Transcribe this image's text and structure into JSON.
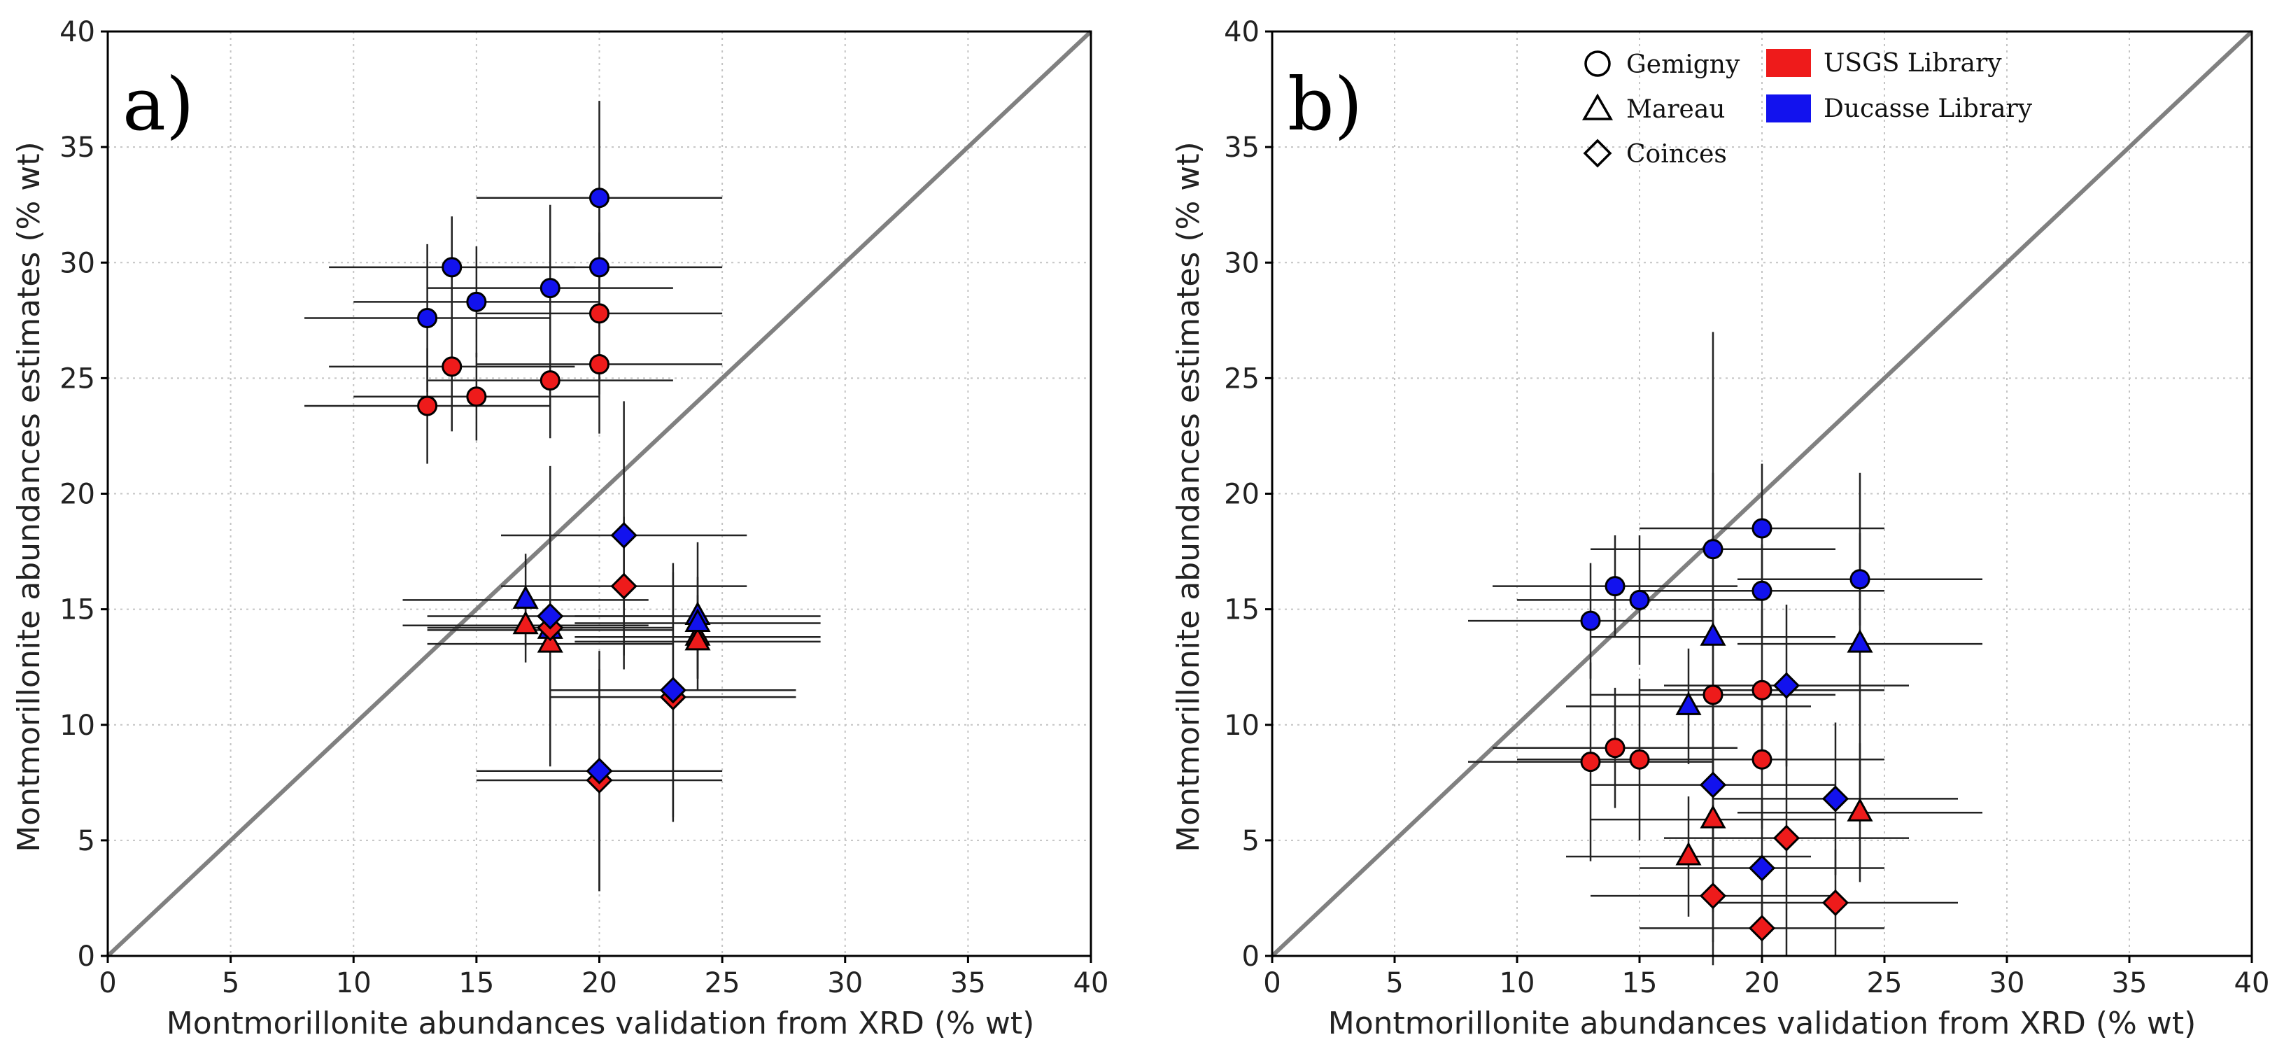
{
  "colors": {
    "usgs": "#ee1b1b",
    "ducasse": "#1212ee",
    "diagonal": "#808080"
  },
  "legend": {
    "shapes": [
      {
        "shape": "circle",
        "label": "Gemigny"
      },
      {
        "shape": "triangle",
        "label": "Mareau"
      },
      {
        "shape": "diamond",
        "label": "Coinces"
      }
    ],
    "libraries": [
      {
        "color_key": "usgs",
        "label": "USGS Library"
      },
      {
        "color_key": "ducasse",
        "label": "Ducasse Library"
      }
    ]
  },
  "chart_data": [
    {
      "panel": "a)",
      "type": "scatter",
      "xlabel": "Montmorillonite abundances validation from XRD (% wt)",
      "ylabel": "Montmorillonite abundances estimates (% wt)",
      "xlim": [
        0,
        40
      ],
      "ylim": [
        0,
        40
      ],
      "xticks": [
        0,
        5,
        10,
        15,
        20,
        25,
        30,
        35,
        40
      ],
      "yticks": [
        0,
        5,
        10,
        15,
        20,
        25,
        30,
        35,
        40
      ],
      "grid": true,
      "identity_line": true,
      "series": [
        {
          "name": "Gemigny - Ducasse Library",
          "shape": "circle",
          "color_key": "ducasse",
          "points": [
            {
              "x": 13,
              "y": 27.6,
              "xerr": 5,
              "yerr": 3.2
            },
            {
              "x": 14,
              "y": 29.8,
              "xerr": 5,
              "yerr": 2.2
            },
            {
              "x": 15,
              "y": 28.3,
              "xerr": 5,
              "yerr": 2.4
            },
            {
              "x": 18,
              "y": 28.9,
              "xerr": 5,
              "yerr": 3.6
            },
            {
              "x": 20,
              "y": 29.8,
              "xerr": 5,
              "yerr": 2.6
            },
            {
              "x": 20,
              "y": 32.8,
              "xerr": 5,
              "yerr": 4.2
            }
          ]
        },
        {
          "name": "Gemigny - USGS Library",
          "shape": "circle",
          "color_key": "usgs",
          "points": [
            {
              "x": 13,
              "y": 23.8,
              "xerr": 5,
              "yerr": 2.5
            },
            {
              "x": 14,
              "y": 25.5,
              "xerr": 5,
              "yerr": 2.8
            },
            {
              "x": 15,
              "y": 24.2,
              "xerr": 5,
              "yerr": 1.9
            },
            {
              "x": 18,
              "y": 24.9,
              "xerr": 5,
              "yerr": 2.5
            },
            {
              "x": 20,
              "y": 25.6,
              "xerr": 5,
              "yerr": 3.0
            },
            {
              "x": 20,
              "y": 27.8,
              "xerr": 5,
              "yerr": 3.5
            }
          ]
        },
        {
          "name": "Mareau - USGS Library",
          "shape": "triangle",
          "color_key": "usgs",
          "points": [
            {
              "x": 17,
              "y": 14.3,
              "xerr": 5,
              "yerr": 1.6
            },
            {
              "x": 18,
              "y": 13.5,
              "xerr": 5,
              "yerr": 2.4
            },
            {
              "x": 24,
              "y": 13.8,
              "xerr": 5,
              "yerr": 1.8
            },
            {
              "x": 24,
              "y": 13.6,
              "xerr": 5,
              "yerr": 1.6
            }
          ]
        },
        {
          "name": "Mareau - Ducasse Library",
          "shape": "triangle",
          "color_key": "ducasse",
          "points": [
            {
              "x": 17,
              "y": 15.4,
              "xerr": 5,
              "yerr": 2.0
            },
            {
              "x": 18,
              "y": 14.1,
              "xerr": 5,
              "yerr": 2.7
            },
            {
              "x": 24,
              "y": 14.7,
              "xerr": 5,
              "yerr": 3.2
            },
            {
              "x": 24,
              "y": 14.4,
              "xerr": 5,
              "yerr": 2.0
            }
          ]
        },
        {
          "name": "Coinces - USGS Library",
          "shape": "diamond",
          "color_key": "usgs",
          "points": [
            {
              "x": 18,
              "y": 14.2,
              "xerr": 5,
              "yerr": 2.0
            },
            {
              "x": 20,
              "y": 7.6,
              "xerr": 5,
              "yerr": 4.8
            },
            {
              "x": 21,
              "y": 16.0,
              "xerr": 5,
              "yerr": 3.0
            },
            {
              "x": 23,
              "y": 11.2,
              "xerr": 5,
              "yerr": 5.4
            }
          ]
        },
        {
          "name": "Coinces - Ducasse Library",
          "shape": "diamond",
          "color_key": "ducasse",
          "points": [
            {
              "x": 18,
              "y": 14.7,
              "xerr": 5,
              "yerr": 6.5
            },
            {
              "x": 20,
              "y": 8.0,
              "xerr": 5,
              "yerr": 5.2
            },
            {
              "x": 21,
              "y": 18.2,
              "xerr": 5,
              "yerr": 5.8
            },
            {
              "x": 23,
              "y": 11.5,
              "xerr": 5,
              "yerr": 5.5
            }
          ]
        }
      ]
    },
    {
      "panel": "b)",
      "type": "scatter",
      "xlabel": "Montmorillonite abundances validation from XRD (% wt)",
      "ylabel": "Montmorillonite abundances estimates (% wt)",
      "xlim": [
        0,
        40
      ],
      "ylim": [
        0,
        40
      ],
      "xticks": [
        0,
        5,
        10,
        15,
        20,
        25,
        30,
        35,
        40
      ],
      "yticks": [
        0,
        5,
        10,
        15,
        20,
        25,
        30,
        35,
        40
      ],
      "grid": true,
      "identity_line": true,
      "series": [
        {
          "name": "Gemigny - Ducasse Library",
          "shape": "circle",
          "color_key": "ducasse",
          "points": [
            {
              "x": 13,
              "y": 14.5,
              "xerr": 5,
              "yerr": 2.5
            },
            {
              "x": 14,
              "y": 16.0,
              "xerr": 5,
              "yerr": 2.2
            },
            {
              "x": 15,
              "y": 15.4,
              "xerr": 5,
              "yerr": 2.8
            },
            {
              "x": 18,
              "y": 17.6,
              "xerr": 5,
              "yerr": 3.3
            },
            {
              "x": 20,
              "y": 18.5,
              "xerr": 5,
              "yerr": 2.8
            },
            {
              "x": 20,
              "y": 15.8,
              "xerr": 5,
              "yerr": 2.0
            },
            {
              "x": 24,
              "y": 16.3,
              "xerr": 5,
              "yerr": 2.0
            }
          ]
        },
        {
          "name": "Gemigny - USGS Library",
          "shape": "circle",
          "color_key": "usgs",
          "points": [
            {
              "x": 13,
              "y": 8.4,
              "xerr": 5,
              "yerr": 4.3
            },
            {
              "x": 14,
              "y": 9.0,
              "xerr": 5,
              "yerr": 2.6
            },
            {
              "x": 15,
              "y": 8.5,
              "xerr": 5,
              "yerr": 3.5
            },
            {
              "x": 18,
              "y": 11.3,
              "xerr": 5,
              "yerr": 4.0
            },
            {
              "x": 20,
              "y": 11.5,
              "xerr": 5,
              "yerr": 3.5
            },
            {
              "x": 20,
              "y": 8.5,
              "xerr": 5,
              "yerr": 3.0
            }
          ]
        },
        {
          "name": "Mareau - Ducasse Library",
          "shape": "triangle",
          "color_key": "ducasse",
          "points": [
            {
              "x": 17,
              "y": 10.8,
              "xerr": 5,
              "yerr": 2.5
            },
            {
              "x": 18,
              "y": 13.8,
              "xerr": 5,
              "yerr": 13.2
            },
            {
              "x": 24,
              "y": 13.5,
              "xerr": 5,
              "yerr": 7.4
            }
          ]
        },
        {
          "name": "Mareau - USGS Library",
          "shape": "triangle",
          "color_key": "usgs",
          "points": [
            {
              "x": 17,
              "y": 4.3,
              "xerr": 5,
              "yerr": 2.6
            },
            {
              "x": 18,
              "y": 5.9,
              "xerr": 5,
              "yerr": 4.0
            },
            {
              "x": 24,
              "y": 6.2,
              "xerr": 5,
              "yerr": 3.0
            }
          ]
        },
        {
          "name": "Coinces - Ducasse Library",
          "shape": "diamond",
          "color_key": "ducasse",
          "points": [
            {
              "x": 18,
              "y": 7.4,
              "xerr": 5,
              "yerr": 4.0
            },
            {
              "x": 20,
              "y": 3.8,
              "xerr": 5,
              "yerr": 3.0
            },
            {
              "x": 21,
              "y": 11.7,
              "xerr": 5,
              "yerr": 3.5
            },
            {
              "x": 23,
              "y": 6.8,
              "xerr": 5,
              "yerr": 3.3
            }
          ]
        },
        {
          "name": "Coinces - USGS Library",
          "shape": "diamond",
          "color_key": "usgs",
          "points": [
            {
              "x": 18,
              "y": 2.6,
              "xerr": 5,
              "yerr": 3.0
            },
            {
              "x": 20,
              "y": 1.2,
              "xerr": 5,
              "yerr": 1.2
            },
            {
              "x": 21,
              "y": 5.1,
              "xerr": 5,
              "yerr": 5.1
            },
            {
              "x": 23,
              "y": 2.3,
              "xerr": 5,
              "yerr": 2.3
            }
          ]
        }
      ]
    }
  ]
}
